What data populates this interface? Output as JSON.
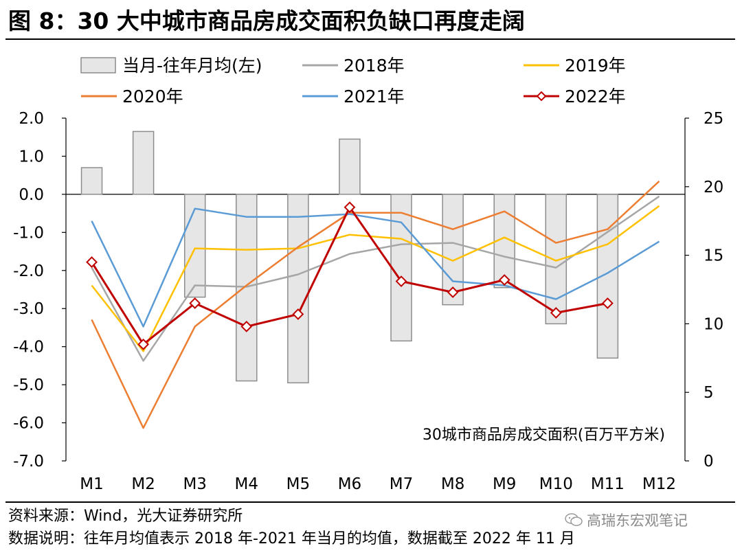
{
  "title": "图 8：30 大中城市商品房成交面积负缺口再度走阔",
  "notes": {
    "source": "资料来源：Wind，光大证券研究所",
    "explanation": "数据说明：往年月均值表示 2018 年-2021 年当月的均值，数据截至 2022 年 11 月"
  },
  "watermark": "高瑞东宏观笔记",
  "colors": {
    "bar_fill": "#e6e6e6",
    "bar_stroke": "#8c8c8c",
    "y2018": "#a6a6a6",
    "y2019": "#ffc000",
    "y2020": "#ed7d31",
    "y2021": "#5b9bd5",
    "y2022": "#c00000"
  },
  "chart_data": {
    "type": "bar+line",
    "categories": [
      "M1",
      "M2",
      "M3",
      "M4",
      "M5",
      "M6",
      "M7",
      "M8",
      "M9",
      "M10",
      "M11",
      "M12"
    ],
    "left_axis": {
      "range": [
        -7,
        2
      ],
      "ticks": [
        "2.0",
        "1.0",
        "0.0",
        "-1.0",
        "-2.0",
        "-3.0",
        "-4.0",
        "-5.0",
        "-6.0",
        "-7.0"
      ]
    },
    "right_axis": {
      "range": [
        0,
        25
      ],
      "ticks": [
        "25",
        "20",
        "15",
        "10",
        "5",
        "0"
      ]
    },
    "annotation": "30城市商品房成交面积(百万平方米)",
    "bars": {
      "name": "当月-往年月均(左)",
      "axis": "left",
      "values": [
        0.7,
        1.65,
        -2.7,
        -4.9,
        -4.95,
        1.45,
        -3.85,
        -2.9,
        -2.45,
        -3.4,
        -4.3,
        null
      ]
    },
    "series": [
      {
        "name": "2018年",
        "axis": "right",
        "values": [
          14.1,
          7.3,
          12.8,
          12.7,
          13.6,
          15.1,
          15.8,
          15.9,
          14.9,
          14.1,
          16.7,
          19.3
        ]
      },
      {
        "name": "2019年",
        "axis": "right",
        "values": [
          12.8,
          8.0,
          15.5,
          15.4,
          15.5,
          16.5,
          16.2,
          14.6,
          16.3,
          14.6,
          15.8,
          18.6
        ]
      },
      {
        "name": "2020年",
        "axis": "right",
        "values": [
          10.3,
          2.4,
          9.8,
          12.8,
          15.6,
          18.1,
          18.1,
          16.9,
          18.2,
          15.9,
          16.9,
          20.4
        ]
      },
      {
        "name": "2021年",
        "axis": "right",
        "values": [
          17.5,
          9.8,
          18.4,
          17.8,
          17.8,
          18.0,
          17.4,
          13.1,
          12.8,
          11.8,
          13.7,
          16.0
        ]
      },
      {
        "name": "2022年",
        "axis": "right",
        "values": [
          14.5,
          8.5,
          11.5,
          9.8,
          10.7,
          18.5,
          13.1,
          12.3,
          13.2,
          10.8,
          11.5,
          null
        ]
      }
    ]
  }
}
